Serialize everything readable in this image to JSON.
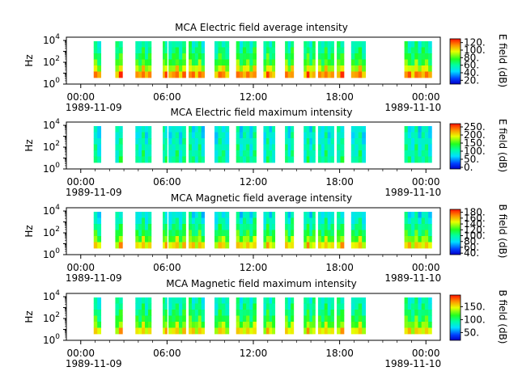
{
  "chart_data": [
    {
      "type": "heatmap",
      "title": "MCA  Electric field average intensity",
      "ylabel": "Hz",
      "colorbar_label": "E field (dB)",
      "colorbar_ticks": [
        "20.",
        "40.",
        "60.",
        "80.",
        "100.",
        "120."
      ],
      "colorbar_range": [
        10,
        130
      ],
      "yscale": "log",
      "ylim": [
        1,
        20000
      ],
      "y_ticks": [
        {
          "base": "10",
          "exp": "0"
        },
        {
          "base": "10",
          "exp": "2"
        },
        {
          "base": "10",
          "exp": "4"
        }
      ],
      "x_ticks": [
        "00:00",
        "06:00",
        "12:00",
        "18:00",
        "00:00"
      ],
      "x_dates": [
        "1989-11-09",
        "1989-11-10"
      ],
      "level_profile": [
        0.85,
        0.7,
        0.55,
        0.5,
        0.45,
        0.4
      ],
      "data_segments_hours": [
        [
          0.9,
          1.4
        ],
        [
          2.4,
          2.9
        ],
        [
          3.8,
          4.9
        ],
        [
          5.7,
          6.0
        ],
        [
          6.1,
          7.3
        ],
        [
          7.5,
          8.6
        ],
        [
          9.3,
          10.3
        ],
        [
          10.8,
          12.2
        ],
        [
          12.7,
          13.5
        ],
        [
          14.2,
          14.8
        ],
        [
          15.5,
          16.3
        ],
        [
          16.5,
          17.6
        ],
        [
          17.8,
          18.3
        ],
        [
          18.8,
          19.8
        ],
        [
          22.5,
          24.4
        ]
      ]
    },
    {
      "type": "heatmap",
      "title": "MCA  Electric field maximum intensity",
      "ylabel": "Hz",
      "colorbar_label": "E field (dB)",
      "colorbar_ticks": [
        "0.",
        "50.",
        "100.",
        "150.",
        "200.",
        "250."
      ],
      "colorbar_range": [
        -10,
        270
      ],
      "yscale": "log",
      "ylim": [
        1,
        20000
      ],
      "y_ticks": [
        {
          "base": "10",
          "exp": "0"
        },
        {
          "base": "10",
          "exp": "2"
        },
        {
          "base": "10",
          "exp": "4"
        }
      ],
      "x_ticks": [
        "00:00",
        "06:00",
        "12:00",
        "18:00",
        "00:00"
      ],
      "x_dates": [
        "1989-11-09",
        "1989-11-10"
      ],
      "level_profile": [
        0.42,
        0.4,
        0.38,
        0.36,
        0.35,
        0.34
      ],
      "data_segments_hours": [
        [
          0.9,
          1.4
        ],
        [
          2.4,
          2.9
        ],
        [
          3.8,
          4.9
        ],
        [
          5.7,
          6.0
        ],
        [
          6.1,
          7.3
        ],
        [
          7.5,
          8.6
        ],
        [
          9.3,
          10.3
        ],
        [
          10.8,
          12.2
        ],
        [
          12.7,
          13.5
        ],
        [
          14.2,
          14.8
        ],
        [
          15.5,
          16.3
        ],
        [
          16.5,
          17.6
        ],
        [
          17.8,
          18.3
        ],
        [
          18.8,
          19.8
        ],
        [
          22.5,
          24.4
        ]
      ]
    },
    {
      "type": "heatmap",
      "title": "MCA  Magnetic field average intensity",
      "ylabel": "Hz",
      "colorbar_label": "B field (dB)",
      "colorbar_ticks": [
        "40.",
        "60.",
        "80.",
        "100.",
        "120.",
        "140.",
        "160.",
        "180."
      ],
      "colorbar_range": [
        35,
        190
      ],
      "yscale": "log",
      "ylim": [
        1,
        20000
      ],
      "y_ticks": [
        {
          "base": "10",
          "exp": "0"
        },
        {
          "base": "10",
          "exp": "2"
        },
        {
          "base": "10",
          "exp": "4"
        }
      ],
      "x_ticks": [
        "00:00",
        "06:00",
        "12:00",
        "18:00",
        "00:00"
      ],
      "x_dates": [
        "1989-11-09",
        "1989-11-10"
      ],
      "level_profile": [
        0.75,
        0.62,
        0.5,
        0.44,
        0.38,
        0.33
      ],
      "data_segments_hours": [
        [
          0.9,
          1.4
        ],
        [
          2.4,
          2.9
        ],
        [
          3.8,
          4.9
        ],
        [
          5.7,
          6.0
        ],
        [
          6.1,
          7.3
        ],
        [
          7.5,
          8.6
        ],
        [
          9.3,
          10.3
        ],
        [
          10.8,
          12.2
        ],
        [
          12.7,
          13.5
        ],
        [
          14.2,
          14.8
        ],
        [
          15.5,
          16.3
        ],
        [
          16.5,
          17.6
        ],
        [
          17.8,
          18.3
        ],
        [
          18.8,
          19.8
        ],
        [
          22.5,
          24.4
        ]
      ]
    },
    {
      "type": "heatmap",
      "title": "MCA  Magnetic field maximum intensity",
      "ylabel": "Hz",
      "colorbar_label": "B field (dB)",
      "colorbar_ticks": [
        "50.",
        "100.",
        "150."
      ],
      "colorbar_range": [
        20,
        195
      ],
      "yscale": "log",
      "ylim": [
        1,
        20000
      ],
      "y_ticks": [
        {
          "base": "10",
          "exp": "0"
        },
        {
          "base": "10",
          "exp": "2"
        },
        {
          "base": "10",
          "exp": "4"
        }
      ],
      "x_ticks": [
        "00:00",
        "06:00",
        "12:00",
        "18:00",
        "00:00"
      ],
      "x_dates": [
        "1989-11-09",
        "1989-11-10"
      ],
      "level_profile": [
        0.74,
        0.62,
        0.52,
        0.46,
        0.42,
        0.38
      ],
      "data_segments_hours": [
        [
          0.9,
          1.4
        ],
        [
          2.4,
          2.9
        ],
        [
          3.8,
          4.9
        ],
        [
          5.7,
          6.0
        ],
        [
          6.1,
          7.3
        ],
        [
          7.5,
          8.6
        ],
        [
          9.3,
          10.3
        ],
        [
          10.8,
          12.2
        ],
        [
          12.7,
          13.5
        ],
        [
          14.2,
          14.8
        ],
        [
          15.5,
          16.3
        ],
        [
          16.5,
          17.6
        ],
        [
          17.8,
          18.3
        ],
        [
          18.8,
          19.8
        ],
        [
          22.5,
          24.4
        ]
      ]
    }
  ]
}
